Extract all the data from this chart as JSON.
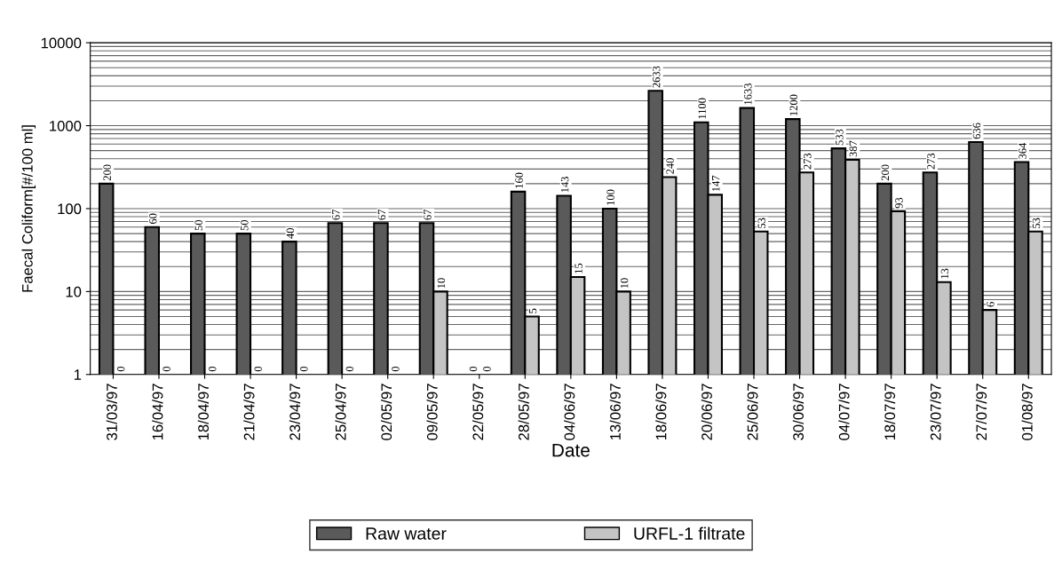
{
  "chart_data": {
    "type": "bar",
    "xlabel": "Date",
    "ylabel": "Faecal Coliform[#/100 ml]",
    "categories": [
      "31/03/97",
      "16/04/97",
      "18/04/97",
      "21/04/97",
      "23/04/97",
      "25/04/97",
      "02/05/97",
      "09/05/97",
      "22/05/97",
      "28/05/97",
      "04/06/97",
      "13/06/97",
      "18/06/97",
      "20/06/97",
      "25/06/97",
      "30/06/97",
      "04/07/97",
      "18/07/97",
      "23/07/97",
      "27/07/97",
      "01/08/97"
    ],
    "series": [
      {
        "name": "Raw water",
        "color": "#5a5a5a",
        "values": [
          200,
          60,
          50,
          50,
          40,
          67,
          67,
          67,
          null,
          160,
          143,
          100,
          2633,
          1100,
          1633,
          1200,
          533,
          200,
          273,
          636,
          364
        ],
        "value_labels": [
          "200",
          "60",
          "50",
          "50",
          "40",
          "67",
          "67",
          "67",
          "0",
          "160",
          "143",
          "100",
          "2633",
          "1100",
          "1633",
          "1200",
          "533",
          "200",
          "273",
          "636",
          "364"
        ]
      },
      {
        "name": "URFL-1 filtrate",
        "color": "#c4c4c4",
        "values": [
          null,
          null,
          null,
          null,
          null,
          null,
          null,
          10,
          null,
          5,
          15,
          10,
          240,
          147,
          53,
          273,
          387,
          93,
          13,
          6,
          53
        ],
        "value_labels": [
          "0",
          "0",
          "0",
          "0",
          "0",
          "0",
          "0",
          "10",
          "0",
          "5",
          "15",
          "10",
          "240",
          "147",
          "53",
          "273",
          "387",
          "93",
          "13",
          "6",
          "53"
        ]
      }
    ],
    "log": "y",
    "ylim": [
      1,
      10000
    ],
    "yticks": [
      1,
      10,
      100,
      1000,
      10000
    ],
    "grid": "y",
    "legend": "bottom"
  }
}
